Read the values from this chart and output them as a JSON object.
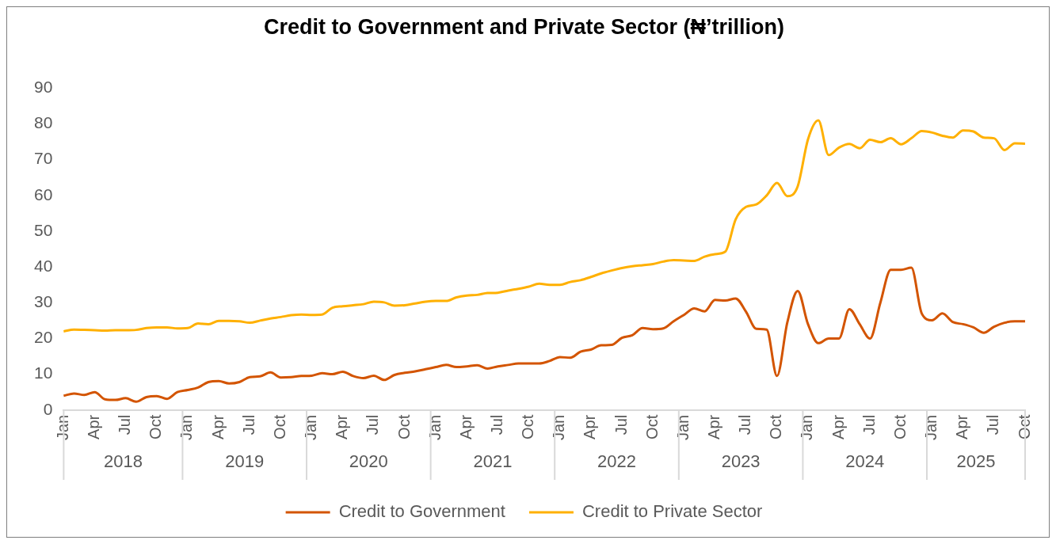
{
  "chart_data": {
    "type": "line",
    "title": "Credit to Government and Private Sector (₦’trillion)",
    "categories": [
      "Jan",
      null,
      null,
      "Apr",
      null,
      null,
      "Jul",
      null,
      null,
      "Oct",
      null,
      null,
      "Jan",
      null,
      null,
      "Apr",
      null,
      null,
      "Jul",
      null,
      null,
      "Oct",
      null,
      null,
      "Jan",
      null,
      null,
      "Apr",
      null,
      null,
      "Jul",
      null,
      null,
      "Oct",
      null,
      null,
      "Jan",
      null,
      null,
      "Apr",
      null,
      null,
      "Jul",
      null,
      null,
      "Oct",
      null,
      null,
      "Jan",
      null,
      null,
      "Apr",
      null,
      null,
      "Jul",
      null,
      null,
      "Oct",
      null,
      null,
      "Jan",
      null,
      null,
      "Apr",
      null,
      null,
      "Jul",
      null,
      null,
      "Oct",
      null,
      null,
      "Jan",
      null,
      null,
      "Apr",
      null,
      null,
      "Jul",
      null,
      null,
      "Oct",
      null,
      null,
      "Jan",
      null,
      null,
      "Apr",
      null,
      null,
      "Jul",
      null,
      null,
      "Oct"
    ],
    "series": [
      {
        "name": "Credit to Government",
        "color": "#d35400",
        "values": [
          4,
          4.6,
          4.2,
          5,
          3,
          2.8,
          3.3,
          2.3,
          3.6,
          3.9,
          3.1,
          5,
          5.6,
          6.3,
          7.8,
          8.1,
          7.4,
          7.8,
          9.2,
          9.4,
          10.5,
          9.1,
          9.2,
          9.5,
          9.6,
          10.3,
          10,
          10.7,
          9.5,
          8.9,
          9.6,
          8.4,
          9.8,
          10.4,
          10.8,
          11.4,
          12,
          12.6,
          12,
          12.2,
          12.5,
          11.6,
          12.2,
          12.6,
          13,
          13,
          13,
          13.7,
          14.8,
          14.6,
          16.3,
          16.9,
          18.1,
          18.2,
          20.2,
          20.9,
          22.9,
          22.6,
          22.8,
          24.8,
          26.6,
          28.4,
          27.6,
          30.8,
          30.6,
          31.2,
          27.5,
          22.7,
          22.5,
          9.5,
          24.5,
          33.3,
          24,
          18.7,
          20,
          20,
          28.2,
          24,
          20,
          30,
          39.2,
          39.2,
          39.8,
          27,
          25.1,
          27,
          24.6,
          24,
          23.1,
          21.6,
          23.3,
          24.4,
          24.8,
          24.8
        ]
      },
      {
        "name": "Credit to Private Sector",
        "color": "#ffb000",
        "values": [
          22,
          22.5,
          22.4,
          22.3,
          22.2,
          22.3,
          22.3,
          22.4,
          22.9,
          23.1,
          23.1,
          22.8,
          22.9,
          24.2,
          24,
          24.9,
          24.9,
          24.8,
          24.4,
          25,
          25.6,
          26,
          26.5,
          26.7,
          26.6,
          26.7,
          28.6,
          29,
          29.3,
          29.6,
          30.3,
          30.1,
          29.2,
          29.3,
          29.8,
          30.3,
          30.5,
          30.5,
          31.5,
          32,
          32.2,
          32.7,
          32.8,
          33.4,
          33.9,
          34.5,
          35.3,
          35,
          35,
          35.8,
          36.3,
          37.2,
          38.2,
          39,
          39.7,
          40.2,
          40.5,
          40.8,
          41.5,
          41.9,
          41.8,
          41.7,
          42.9,
          43.6,
          44.3,
          53.3,
          56.8,
          57.5,
          60,
          63.5,
          59.8,
          62.5,
          75.7,
          81,
          71.3,
          73.4,
          74.4,
          73.2,
          75.6,
          74.9,
          76,
          74.3,
          76,
          78,
          77.6,
          76.7,
          76.2,
          78.2,
          77.9,
          76.2,
          76,
          72.7,
          74.6,
          74.5
        ]
      }
    ],
    "annotations": [
      "2018",
      "2019",
      "2020",
      "2021",
      "2022",
      "2023",
      "2024",
      "2025"
    ],
    "ylim": [
      0,
      90
    ],
    "yticks": [
      0,
      10,
      20,
      30,
      40,
      50,
      60,
      70,
      80,
      90
    ],
    "grid": false,
    "legend": "bottom",
    "marker": "none",
    "line_style": "solid"
  }
}
